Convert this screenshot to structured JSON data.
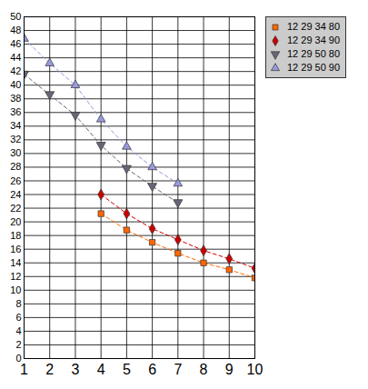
{
  "chart_data": {
    "type": "line",
    "x": [
      1,
      2,
      3,
      4,
      5,
      6,
      7,
      8,
      9,
      10
    ],
    "series": [
      {
        "name": "12 29 34 80",
        "color": "#ff6600",
        "marker": "square",
        "line_style": "dashed",
        "values": [
          null,
          null,
          null,
          21.2,
          18.8,
          17.0,
          15.4,
          14.0,
          13.0,
          11.8
        ]
      },
      {
        "name": "12 29 34 90",
        "color": "#cc0000",
        "marker": "diamond",
        "line_style": "dashed",
        "values": [
          null,
          null,
          null,
          24.0,
          21.2,
          19.0,
          17.4,
          15.8,
          14.6,
          13.2
        ]
      },
      {
        "name": "12 29 50 80",
        "color": "#666677",
        "marker": "triangle-down",
        "line_style": "dashed",
        "values": [
          41.6,
          38.6,
          35.6,
          31.2,
          27.8,
          25.2,
          22.8,
          null,
          null,
          null
        ]
      },
      {
        "name": "12 29 50 90",
        "color": "#9999dd",
        "marker": "triangle",
        "line_style": "dashed",
        "values": [
          46.8,
          43.2,
          40.0,
          35.0,
          31.0,
          28.0,
          25.6,
          null,
          null,
          null
        ]
      }
    ],
    "xlim": [
      1,
      10
    ],
    "xticks": [
      1,
      2,
      3,
      4,
      5,
      6,
      7,
      8,
      9,
      10
    ],
    "ylim": [
      0,
      50
    ],
    "yticks": [
      0,
      2,
      4,
      6,
      8,
      10,
      12,
      14,
      16,
      18,
      20,
      22,
      24,
      26,
      28,
      30,
      32,
      34,
      36,
      38,
      40,
      42,
      44,
      46,
      48,
      50
    ],
    "grid": true,
    "legend": "right"
  }
}
